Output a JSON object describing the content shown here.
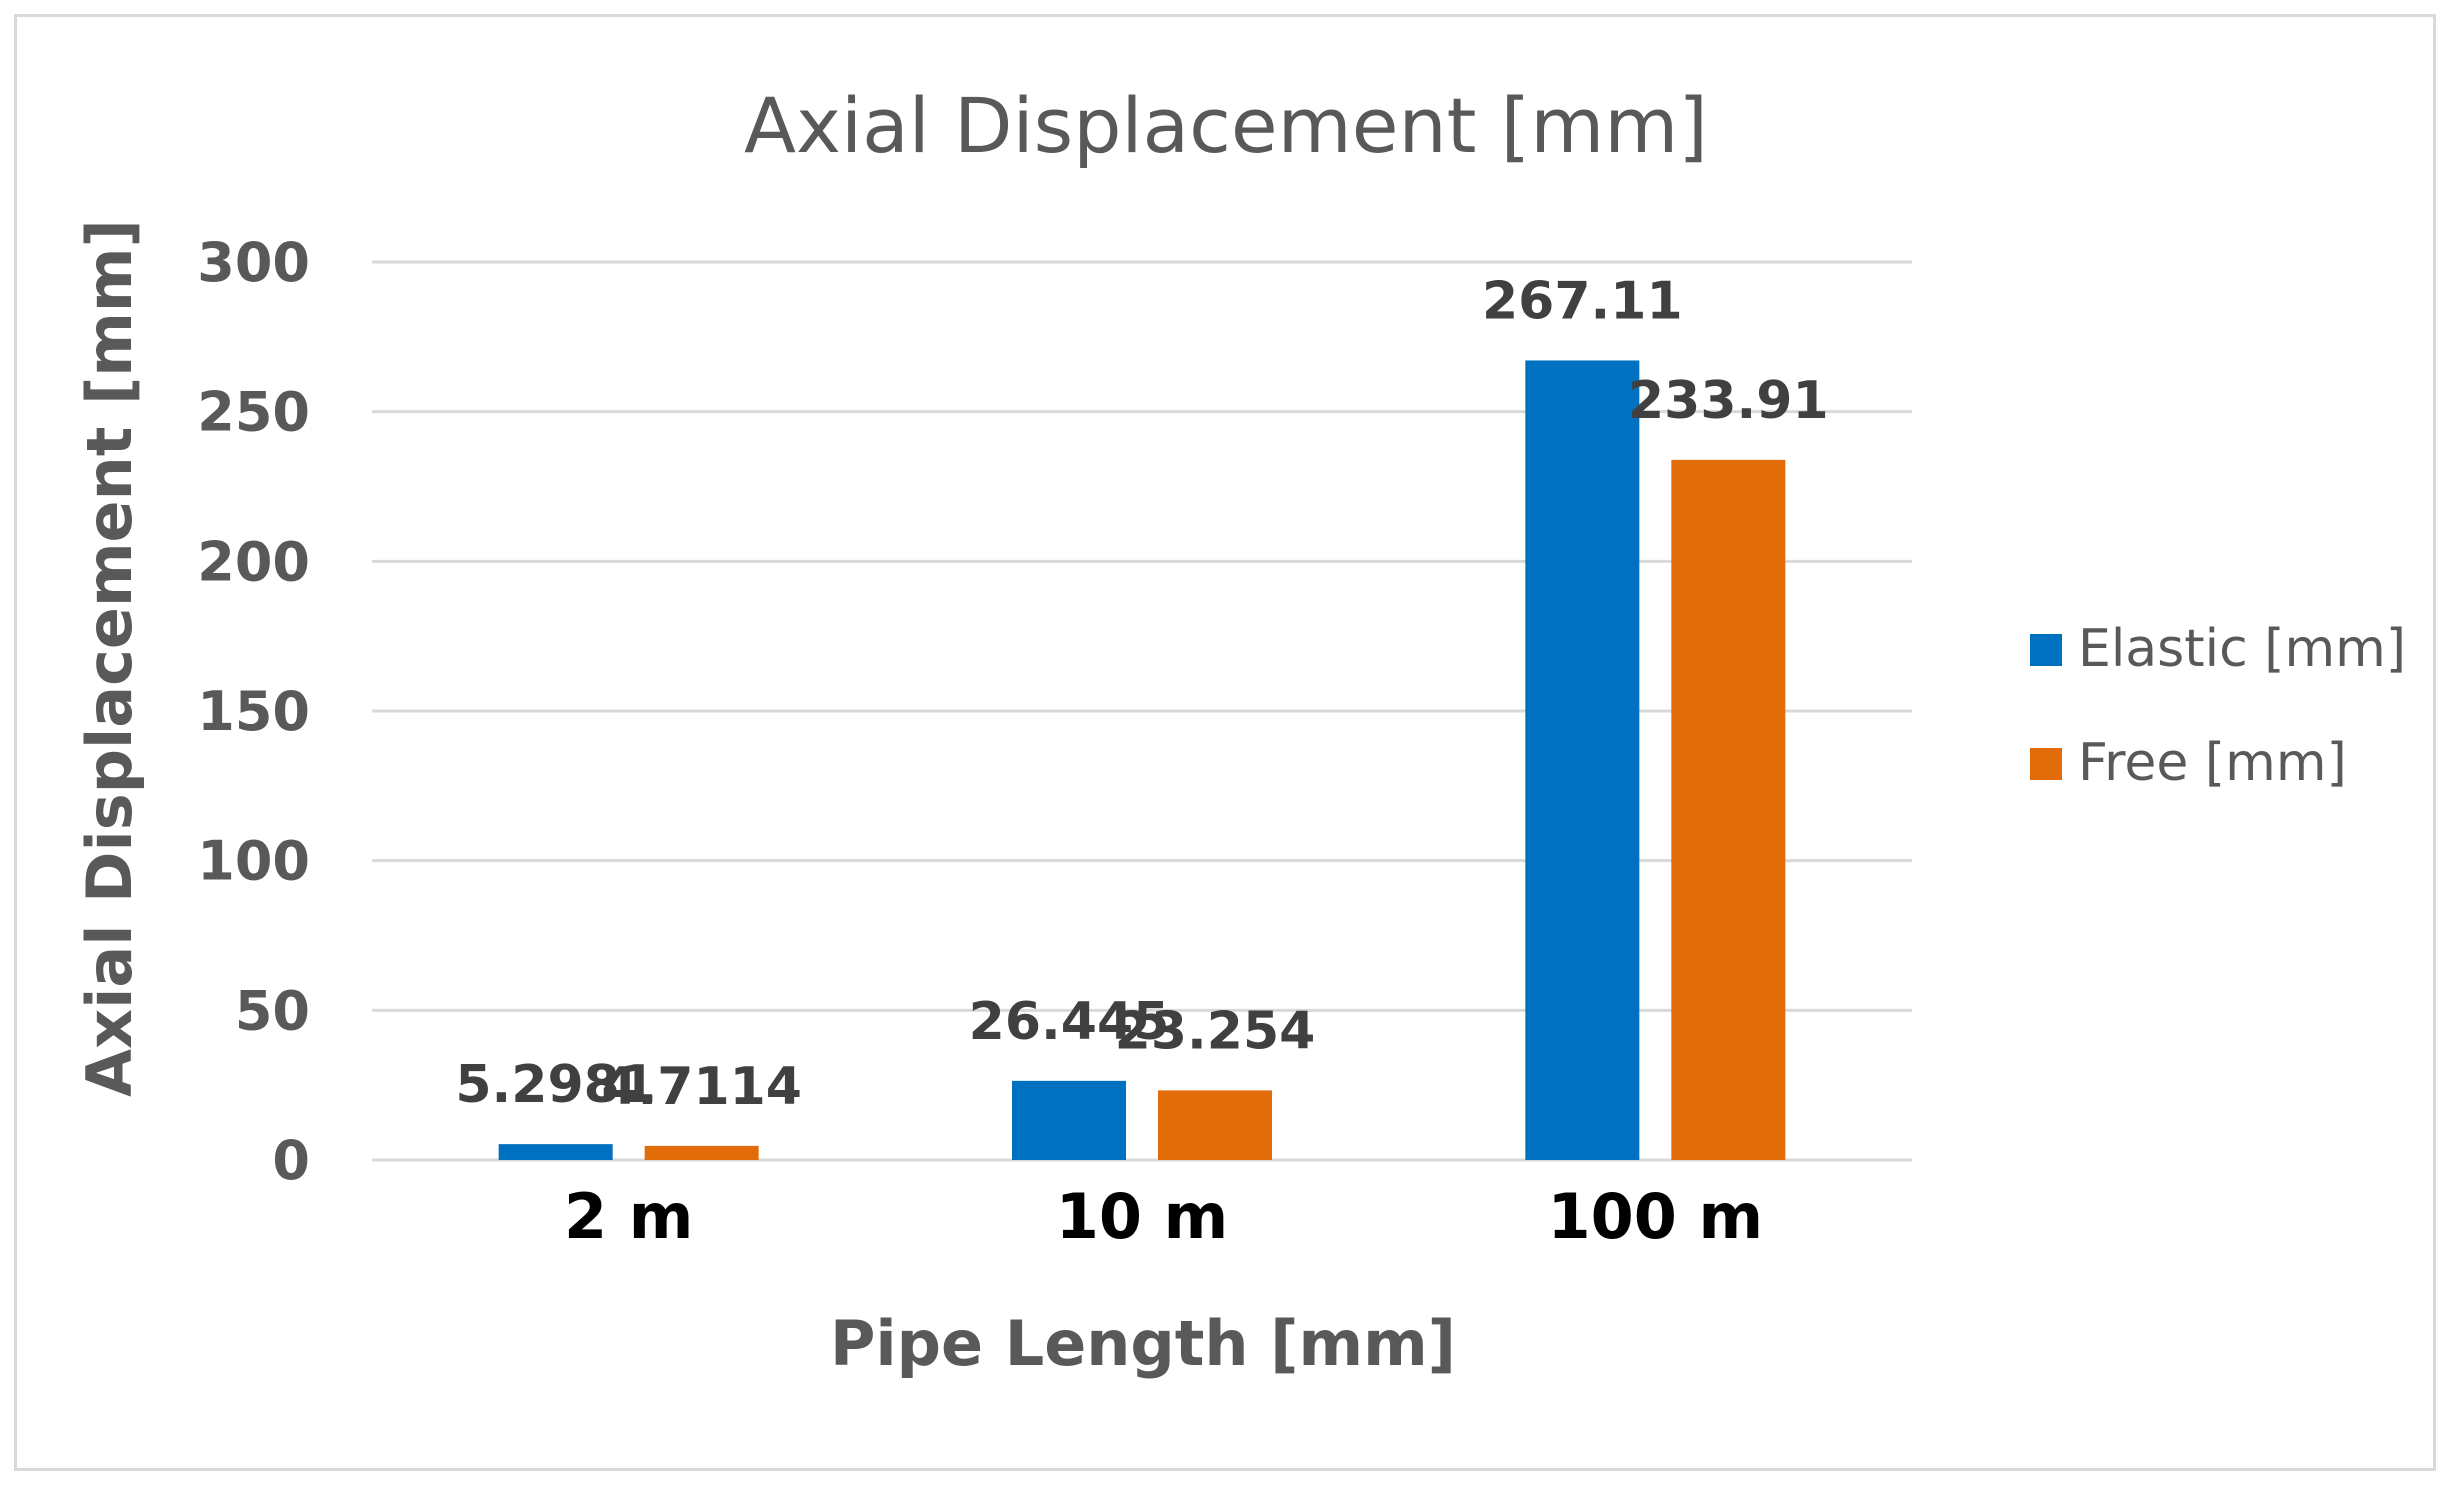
{
  "chart_data": {
    "type": "bar",
    "title": "Axial Displacement  [mm]",
    "xlabel": "Pipe Length [mm]",
    "ylabel": "Axial Displacement [mm]",
    "categories": [
      "2 m",
      "10 m",
      "100 m"
    ],
    "series": [
      {
        "name": "Elastic [mm]",
        "values": [
          5.2981,
          26.445,
          267.11
        ],
        "labels": [
          "5.2981",
          "26.445",
          "267.11"
        ],
        "color": "#0070c0"
      },
      {
        "name": "Free [mm]",
        "values": [
          4.7114,
          23.254,
          233.91
        ],
        "labels": [
          "4.7114",
          "23.254",
          "233.91"
        ],
        "color": "#e36c0a"
      }
    ],
    "ylim": [
      0,
      300
    ],
    "yticks": [
      0,
      50,
      100,
      150,
      200,
      250,
      300
    ],
    "grid": true,
    "legend_position": "right"
  }
}
